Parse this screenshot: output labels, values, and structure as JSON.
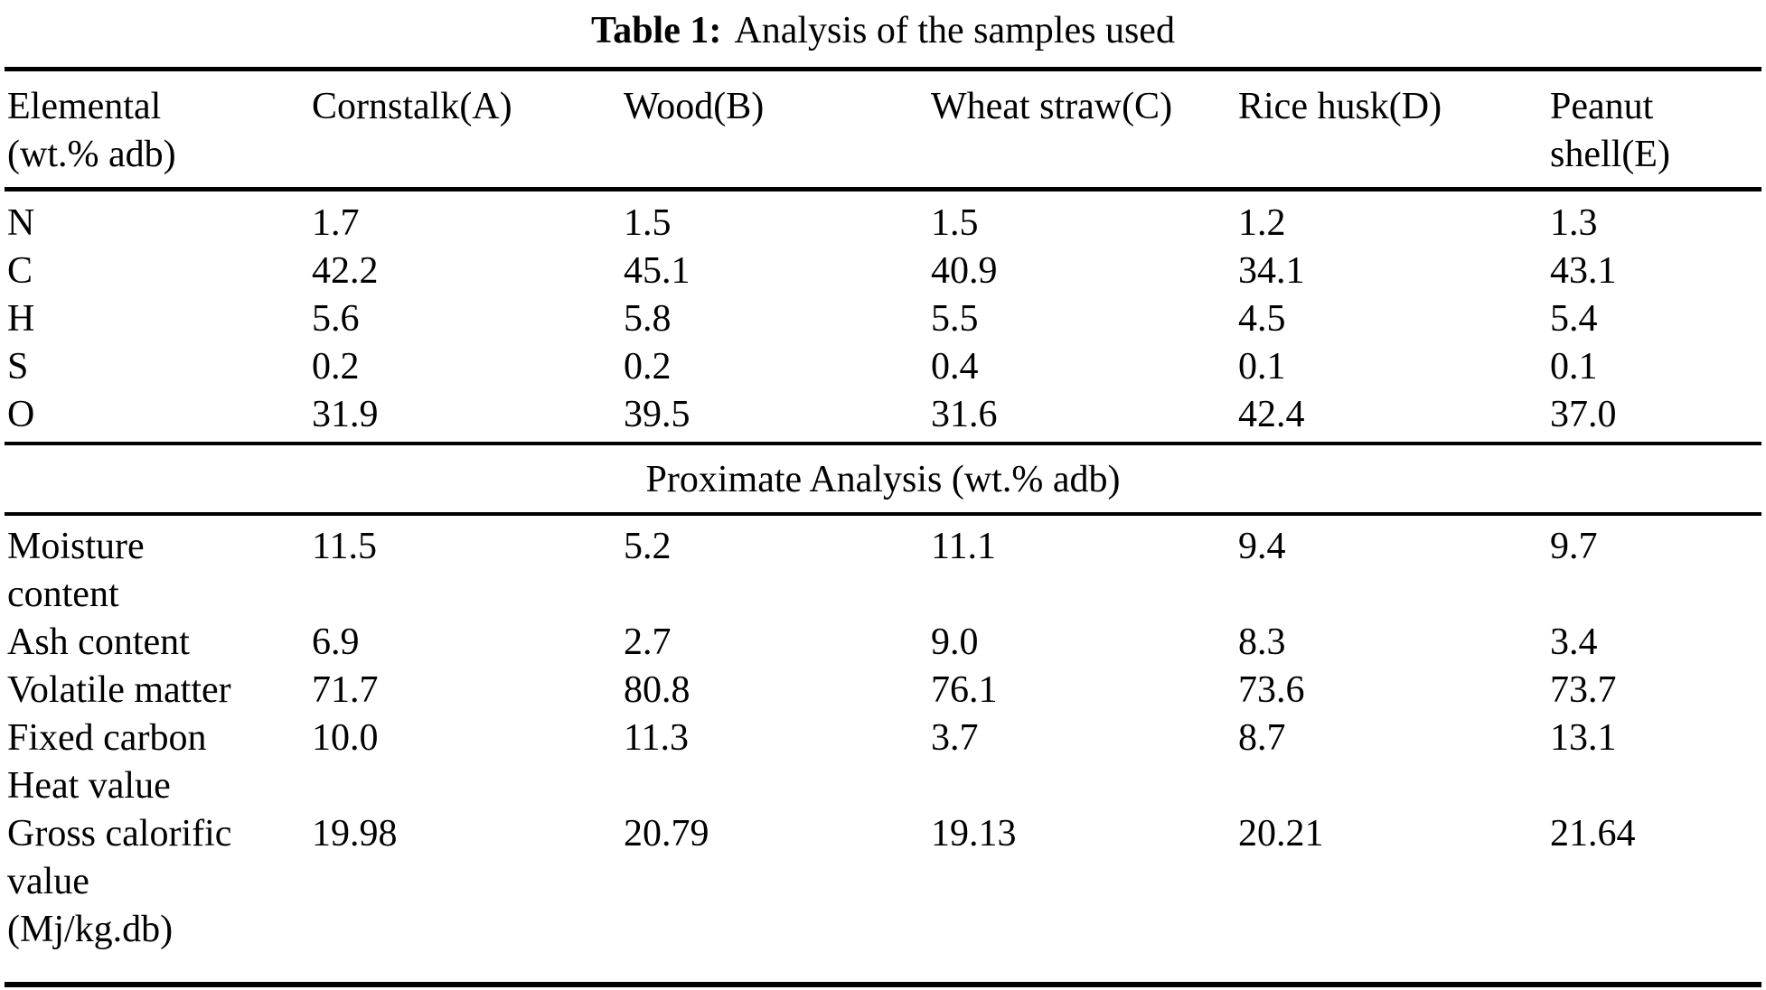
{
  "title": {
    "label": "Table 1:",
    "caption": "Analysis of the samples used"
  },
  "table": {
    "header": [
      "Elemental (wt.% adb)",
      "Cornstalk(A)",
      "Wood(B)",
      "Wheat straw(C)",
      "Rice husk(D)",
      "Peanut shell(E)"
    ],
    "elemental_rows": [
      {
        "label": "N",
        "values": [
          "1.7",
          "1.5",
          "1.5",
          "1.2",
          "1.3"
        ]
      },
      {
        "label": "C",
        "values": [
          "42.2",
          "45.1",
          "40.9",
          "34.1",
          "43.1"
        ]
      },
      {
        "label": "H",
        "values": [
          "5.6",
          "5.8",
          "5.5",
          "4.5",
          "5.4"
        ]
      },
      {
        "label": "S",
        "values": [
          "0.2",
          "0.2",
          "0.4",
          "0.1",
          "0.1"
        ]
      },
      {
        "label": "O",
        "values": [
          "31.9",
          "39.5",
          "31.6",
          "42.4",
          "37.0"
        ]
      }
    ],
    "section_heading": "Proximate Analysis (wt.% adb)",
    "proximate_rows": [
      {
        "label": "Moisture content",
        "values": [
          "11.5",
          "5.2",
          "11.1",
          "9.4",
          "9.7"
        ]
      },
      {
        "label": "Ash content",
        "values": [
          "6.9",
          "2.7",
          "9.0",
          "8.3",
          "3.4"
        ]
      },
      {
        "label": "Volatile matter",
        "values": [
          "71.7",
          "80.8",
          "76.1",
          "73.6",
          "73.7"
        ]
      },
      {
        "label": "Fixed carbon",
        "values": [
          "10.0",
          "11.3",
          "3.7",
          "8.7",
          "13.1"
        ]
      },
      {
        "label": "Heat value",
        "values": [
          "",
          "",
          "",
          "",
          ""
        ]
      },
      {
        "label": "Gross calorific value (Mj/kg.db)",
        "values": [
          "19.98",
          "20.79",
          "19.13",
          "20.21",
          "21.64"
        ]
      }
    ]
  }
}
